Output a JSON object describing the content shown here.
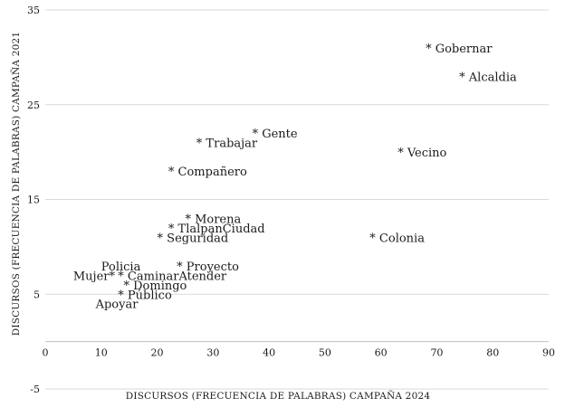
{
  "chart_data": {
    "type": "scatter",
    "title": "",
    "xlabel": "DISCURSOS (FRECUENCIA DE PALABRAS) CAMPAÑA 2024",
    "ylabel": "DISCURSOS (FRECUENCIA DE PALABRAS) CAMPAÑA 2021",
    "xlim": [
      0,
      90
    ],
    "ylim": [
      -5,
      35
    ],
    "xticks": [
      0,
      10,
      20,
      30,
      40,
      50,
      60,
      70,
      80,
      90
    ],
    "yticks": [
      -5,
      5,
      15,
      25,
      35
    ],
    "grid": "horizontal",
    "marker": "*",
    "points": [
      {
        "label": "Gobernar",
        "x": 68,
        "y": 31
      },
      {
        "label": "Alcaldia",
        "x": 74,
        "y": 28
      },
      {
        "label": "Gente",
        "x": 37,
        "y": 22
      },
      {
        "label": "Trabajar",
        "x": 27,
        "y": 21
      },
      {
        "label": "Vecino",
        "x": 63,
        "y": 20
      },
      {
        "label": "Compañero",
        "x": 22,
        "y": 18
      },
      {
        "label": "Morena",
        "x": 25,
        "y": 13
      },
      {
        "label": "TlalpanCiudad",
        "x": 22,
        "y": 12
      },
      {
        "label": "Seguridad",
        "x": 20,
        "y": 11
      },
      {
        "label": "Colonia",
        "x": 58,
        "y": 11
      },
      {
        "label": "Policia",
        "x": 10,
        "y": 8,
        "marker": false
      },
      {
        "label": "Proyecto",
        "x": 23.5,
        "y": 8
      },
      {
        "label": "Mujer*",
        "x": 5,
        "y": 7,
        "marker": false
      },
      {
        "label": "CaminarAtender",
        "x": 13,
        "y": 7
      },
      {
        "label": "Domingo",
        "x": 14,
        "y": 6
      },
      {
        "label": "Público",
        "x": 13,
        "y": 5
      },
      {
        "label": "Apoyar",
        "x": 9,
        "y": 4,
        "marker": false
      }
    ]
  }
}
